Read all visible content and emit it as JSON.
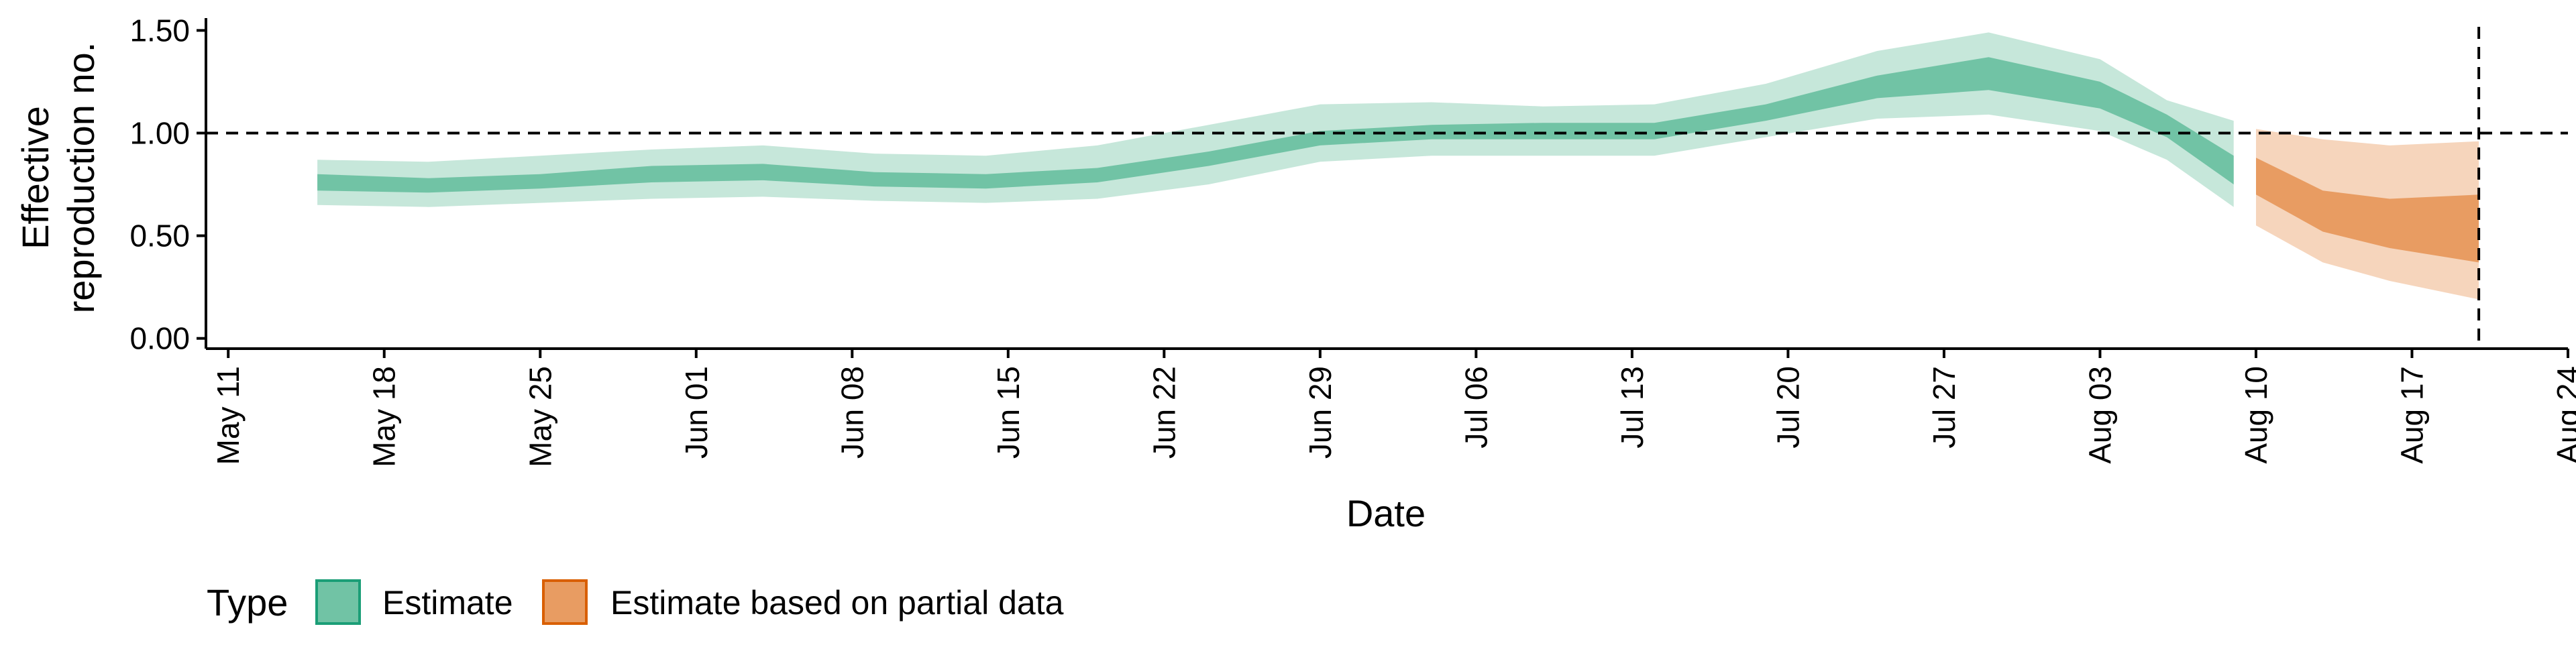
{
  "chart_data": {
    "type": "area",
    "xlabel": "Date",
    "ylabel": [
      "Effective",
      "reproduction no."
    ],
    "x_ticks": [
      "May 11",
      "May 18",
      "May 25",
      "Jun 01",
      "Jun 08",
      "Jun 15",
      "Jun 22",
      "Jun 29",
      "Jul 06",
      "Jul 13",
      "Jul 20",
      "Jul 27",
      "Aug 03",
      "Aug 10",
      "Aug 17",
      "Aug 24"
    ],
    "x_tick_dates": [
      "2020-05-11",
      "2020-05-18",
      "2020-05-25",
      "2020-06-01",
      "2020-06-08",
      "2020-06-15",
      "2020-06-22",
      "2020-06-29",
      "2020-07-06",
      "2020-07-13",
      "2020-07-20",
      "2020-07-27",
      "2020-08-03",
      "2020-08-10",
      "2020-08-17",
      "2020-08-24"
    ],
    "xlim": [
      "2020-05-10",
      "2020-08-24"
    ],
    "y_ticks": [
      "0.00",
      "0.50",
      "1.00",
      "1.50"
    ],
    "y_tick_values": [
      0,
      0.5,
      1.0,
      1.5
    ],
    "ylim": [
      -0.05,
      1.56
    ],
    "reference_hline": 1.0,
    "reference_vline": "2020-08-20",
    "grid": false,
    "legend": {
      "title": "Type",
      "position": "bottom-left",
      "entries": [
        {
          "label": "Estimate",
          "fill": "#71c3a5",
          "stroke": "#1b9e77"
        },
        {
          "label": "Estimate based on partial data",
          "fill": "#e89c62",
          "stroke": "#d95f02"
        }
      ]
    },
    "colors": {
      "estimate_inner": "#71c3a5",
      "estimate_outer": "#c6e7da",
      "partial_inner": "#e89c62",
      "partial_outer": "#f6d5bc"
    },
    "series": [
      {
        "name": "Estimate",
        "x": [
          "2020-05-15",
          "2020-05-20",
          "2020-05-25",
          "2020-05-30",
          "2020-06-04",
          "2020-06-09",
          "2020-06-14",
          "2020-06-19",
          "2020-06-24",
          "2020-06-29",
          "2020-07-04",
          "2020-07-09",
          "2020-07-14",
          "2020-07-19",
          "2020-07-24",
          "2020-07-29",
          "2020-08-03",
          "2020-08-06",
          "2020-08-09"
        ],
        "outer_low": [
          0.65,
          0.64,
          0.66,
          0.68,
          0.69,
          0.67,
          0.66,
          0.68,
          0.75,
          0.86,
          0.89,
          0.89,
          0.89,
          0.98,
          1.07,
          1.09,
          1.01,
          0.87,
          0.64
        ],
        "inner_low": [
          0.72,
          0.71,
          0.73,
          0.76,
          0.77,
          0.74,
          0.73,
          0.76,
          0.84,
          0.94,
          0.97,
          0.97,
          0.97,
          1.06,
          1.17,
          1.21,
          1.12,
          0.98,
          0.75
        ],
        "inner_high": [
          0.8,
          0.78,
          0.8,
          0.84,
          0.85,
          0.81,
          0.8,
          0.83,
          0.91,
          1.01,
          1.04,
          1.05,
          1.05,
          1.14,
          1.28,
          1.37,
          1.25,
          1.09,
          0.89
        ],
        "outer_high": [
          0.87,
          0.86,
          0.89,
          0.92,
          0.94,
          0.9,
          0.89,
          0.94,
          1.04,
          1.14,
          1.15,
          1.13,
          1.14,
          1.24,
          1.4,
          1.49,
          1.36,
          1.16,
          1.06
        ]
      },
      {
        "name": "Estimate based on partial data",
        "x": [
          "2020-08-10",
          "2020-08-13",
          "2020-08-16",
          "2020-08-20"
        ],
        "outer_low": [
          0.55,
          0.37,
          0.28,
          0.19
        ],
        "inner_low": [
          0.7,
          0.52,
          0.44,
          0.37
        ],
        "inner_high": [
          0.88,
          0.72,
          0.68,
          0.7
        ],
        "outer_high": [
          1.02,
          0.97,
          0.94,
          0.96
        ]
      }
    ]
  }
}
